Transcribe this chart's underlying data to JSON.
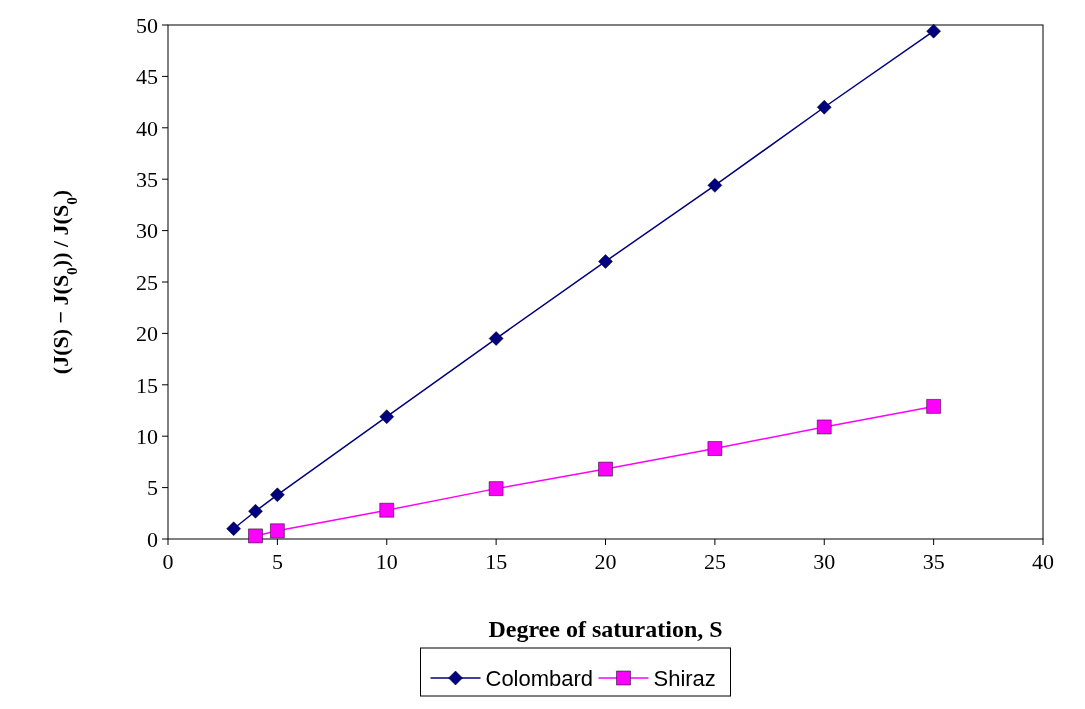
{
  "chart_data": {
    "type": "line",
    "xlabel": "Degree of saturation, S",
    "ylabel": "(J(S) − J(S$_{0}$)) / J(S$_{0}$)",
    "xlim": [
      0,
      40
    ],
    "xticks": [
      0,
      5,
      10,
      15,
      20,
      25,
      30,
      35,
      40
    ],
    "ylim": [
      0,
      50
    ],
    "yticks": [
      0,
      5,
      10,
      15,
      20,
      25,
      30,
      35,
      40,
      45,
      50
    ],
    "grid": false,
    "legend": "bottom",
    "series": [
      {
        "name": "Colombard",
        "color": "#000080",
        "marker": "diamond",
        "x": [
          3,
          4,
          5,
          10,
          15,
          20,
          25,
          30,
          35
        ],
        "values": [
          1,
          2.7,
          4.3,
          11.9,
          19.5,
          27,
          34.4,
          42,
          49.4
        ]
      },
      {
        "name": "Shiraz",
        "color": "#ff00ff",
        "marker": "square",
        "x": [
          4,
          5,
          10,
          15,
          20,
          25,
          30,
          35
        ],
        "values": [
          0.3,
          0.8,
          2.8,
          4.9,
          6.8,
          8.8,
          10.9,
          12.9
        ]
      }
    ]
  }
}
